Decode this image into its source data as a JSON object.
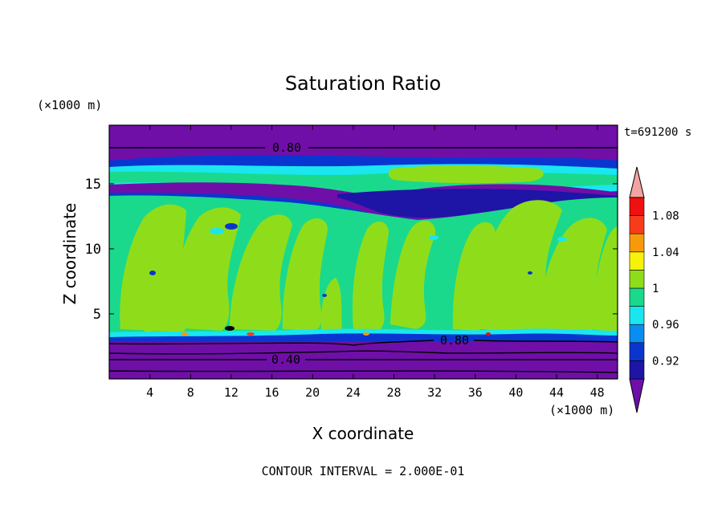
{
  "chart_data": {
    "type": "heatmap",
    "title": "Saturation Ratio",
    "xlabel": "X coordinate",
    "ylabel": "Z coordinate",
    "x_unit": "(×1000 m)",
    "y_unit": "(×1000 m)",
    "time_label": "t=691200 s",
    "footer": "CONTOUR INTERVAL = 2.000E-01",
    "xlim": [
      0,
      50
    ],
    "ylim": [
      0,
      19.5
    ],
    "x_ticks": [
      "4",
      "8",
      "12",
      "16",
      "20",
      "24",
      "28",
      "32",
      "36",
      "40",
      "44",
      "48"
    ],
    "y_ticks": [
      "5",
      "10",
      "15"
    ],
    "colorbar": {
      "labels": [
        "1.08",
        "1.04",
        "1",
        "0.96",
        "0.92"
      ],
      "colors": [
        "#6f0fa8",
        "#1e14a6",
        "#0a36cf",
        "#0a8df0",
        "#1ae6f0",
        "#1ad98c",
        "#8fdd1a",
        "#f7f20a",
        "#f79a0a",
        "#f73c1a",
        "#f01010",
        "#f4a3a3"
      ]
    },
    "contour_labels": [
      "0.80",
      "0.80",
      "0.40"
    ],
    "bands": [
      {
        "z_from": 0,
        "z_to": 3.1,
        "value": "<0.90"
      },
      {
        "z_from": 3.1,
        "z_to": 3.6,
        "value": "0.96"
      },
      {
        "z_from": 3.6,
        "z_to": 14.0,
        "value": "1.00"
      },
      {
        "z_from": 14.0,
        "z_to": 17.4,
        "value": "0.92-0.98"
      },
      {
        "z_from": 17.4,
        "z_to": 19.5,
        "value": "<0.90"
      }
    ]
  }
}
